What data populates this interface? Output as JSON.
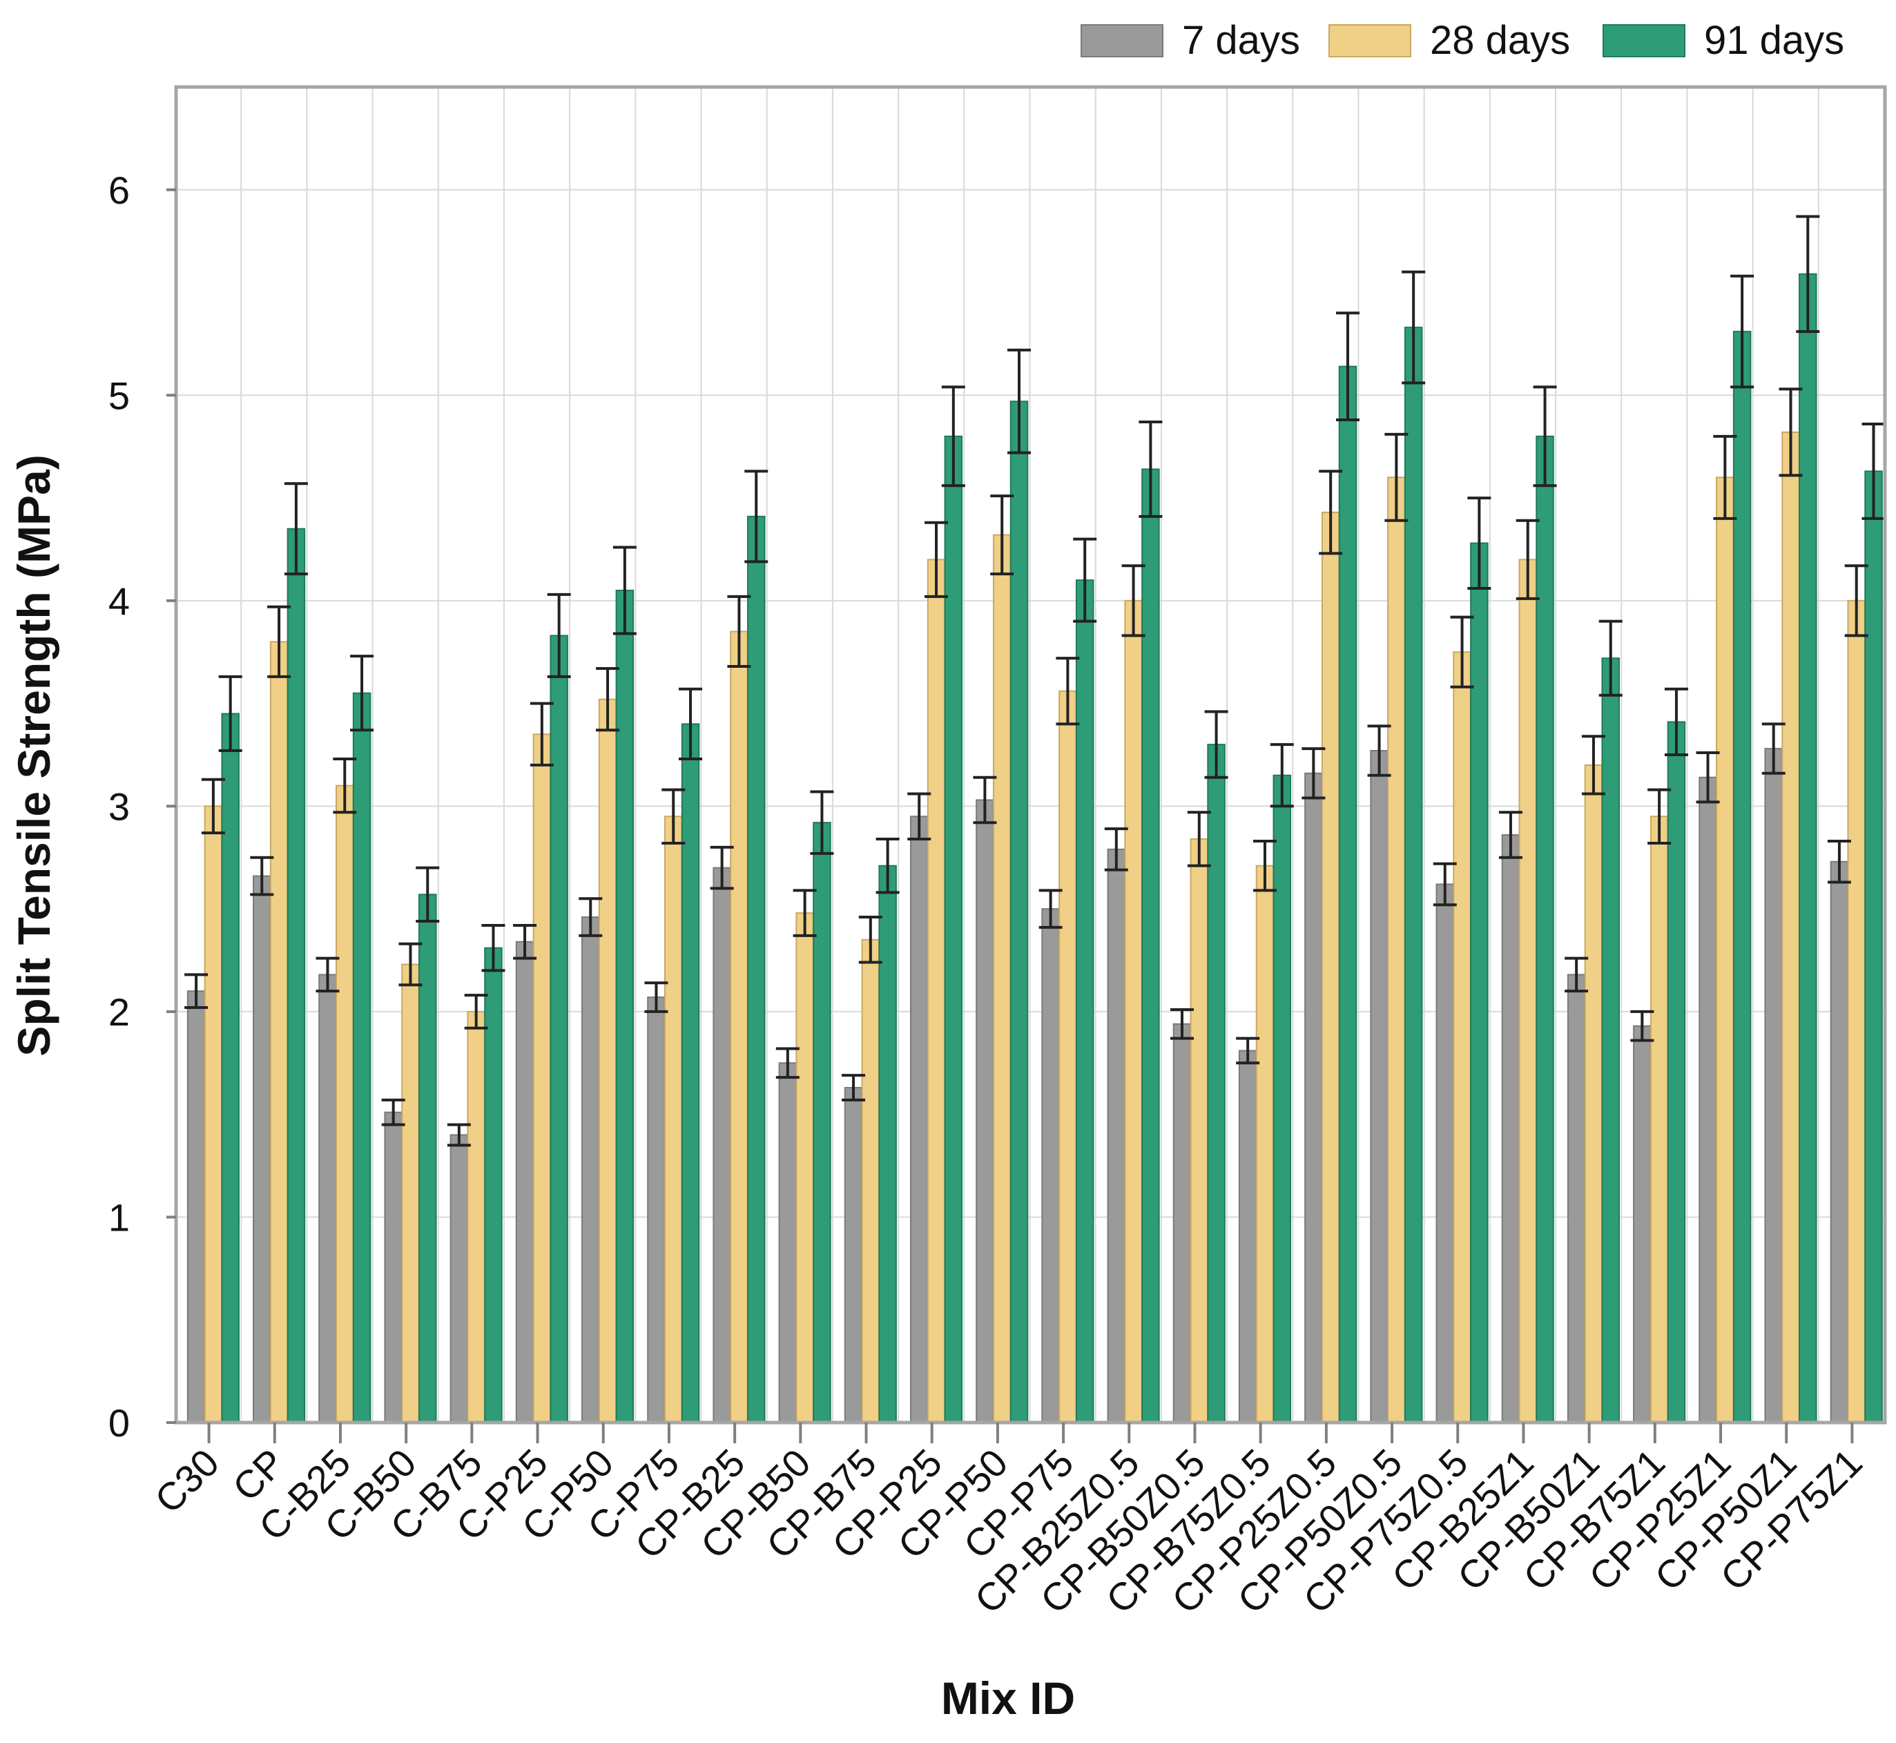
{
  "chart_data": {
    "type": "bar",
    "title": "",
    "xlabel": "Mix ID",
    "ylabel": "Split Tensile Strength (MPa)",
    "ylim": [
      0,
      6.5
    ],
    "yticks": [
      0,
      1,
      2,
      3,
      4,
      5,
      6
    ],
    "grid": true,
    "legend_position": "top-right",
    "categories": [
      "C30",
      "CP",
      "C-B25",
      "C-B50",
      "C-B75",
      "C-P25",
      "C-P50",
      "C-P75",
      "CP-B25",
      "CP-B50",
      "CP-B75",
      "CP-P25",
      "CP-P50",
      "CP-P75",
      "CP-B25Z0.5",
      "CP-B50Z0.5",
      "CP-B75Z0.5",
      "CP-P25Z0.5",
      "CP-P50Z0.5",
      "CP-P75Z0.5",
      "CP-B25Z1",
      "CP-B50Z1",
      "CP-B75Z1",
      "CP-P25Z1",
      "CP-P50Z1",
      "CP-P75Z1"
    ],
    "series": [
      {
        "name": "7 days",
        "color": "#9a9a9a",
        "values": [
          2.1,
          2.66,
          2.18,
          1.51,
          1.4,
          2.34,
          2.46,
          2.07,
          2.7,
          1.75,
          1.63,
          2.95,
          3.03,
          2.5,
          2.79,
          1.94,
          1.81,
          3.16,
          3.27,
          2.62,
          2.86,
          2.18,
          1.93,
          3.14,
          3.28,
          2.73
        ],
        "errors": [
          0.08,
          0.09,
          0.08,
          0.06,
          0.05,
          0.08,
          0.09,
          0.07,
          0.1,
          0.07,
          0.06,
          0.11,
          0.11,
          0.09,
          0.1,
          0.07,
          0.06,
          0.12,
          0.12,
          0.1,
          0.11,
          0.08,
          0.07,
          0.12,
          0.12,
          0.1
        ]
      },
      {
        "name": "28 days",
        "color": "#f0cf86",
        "values": [
          3.0,
          3.8,
          3.1,
          2.23,
          2.0,
          3.35,
          3.52,
          2.95,
          3.85,
          2.48,
          2.35,
          4.2,
          4.32,
          3.56,
          4.0,
          2.84,
          2.71,
          4.43,
          4.6,
          3.75,
          4.2,
          3.2,
          2.95,
          4.6,
          4.82,
          4.0
        ],
        "errors": [
          0.13,
          0.17,
          0.13,
          0.1,
          0.08,
          0.15,
          0.15,
          0.13,
          0.17,
          0.11,
          0.11,
          0.18,
          0.19,
          0.16,
          0.17,
          0.13,
          0.12,
          0.2,
          0.21,
          0.17,
          0.19,
          0.14,
          0.13,
          0.2,
          0.21,
          0.17
        ]
      },
      {
        "name": "91 days",
        "color": "#2f9c78",
        "values": [
          3.45,
          4.35,
          3.55,
          2.57,
          2.31,
          3.83,
          4.05,
          3.4,
          4.41,
          2.92,
          2.71,
          4.8,
          4.97,
          4.1,
          4.64,
          3.3,
          3.15,
          5.14,
          5.33,
          4.28,
          4.8,
          3.72,
          3.41,
          5.31,
          5.59,
          4.63
        ],
        "errors": [
          0.18,
          0.22,
          0.18,
          0.13,
          0.11,
          0.2,
          0.21,
          0.17,
          0.22,
          0.15,
          0.13,
          0.24,
          0.25,
          0.2,
          0.23,
          0.16,
          0.15,
          0.26,
          0.27,
          0.22,
          0.24,
          0.18,
          0.16,
          0.27,
          0.28,
          0.23
        ]
      }
    ]
  }
}
